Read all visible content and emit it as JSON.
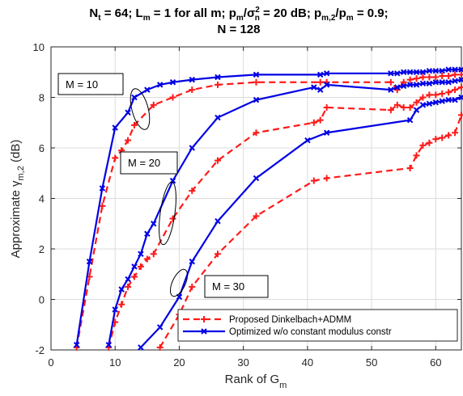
{
  "chart_data": {
    "type": "line",
    "title_line1_parts": [
      "N",
      "t",
      " = 64; L",
      "m",
      " = 1 for all m; p",
      "m",
      "/σ",
      "2",
      "n",
      " = 20 dB; p",
      "m,2",
      "/p",
      "m",
      " = 0.9;"
    ],
    "title_line2": "N = 128",
    "xlabel_parts": [
      "Rank of G",
      "m"
    ],
    "ylabel_parts": [
      "Approximate ",
      "γ",
      "m,2",
      "  (dB)"
    ],
    "xlim": [
      0,
      64
    ],
    "ylim": [
      -2,
      10
    ],
    "xticks": [
      "0",
      "10",
      "20",
      "30",
      "40",
      "50",
      "60"
    ],
    "yticks": [
      "-2",
      "0",
      "2",
      "4",
      "6",
      "8",
      "10"
    ],
    "grid": true,
    "legend_position": "bottom-right",
    "colors": {
      "proposed": "#ff1a1a",
      "optimized": "#0000e6"
    },
    "annotations": [
      "M = 10",
      "M = 20",
      "M = 30"
    ],
    "series": [
      {
        "name": "Proposed Dinkelbach+ADMM",
        "group": "M = 10",
        "style": "proposed",
        "x": [
          4,
          6,
          8,
          10,
          11,
          12,
          13,
          16,
          19,
          22,
          26,
          32,
          42,
          43,
          53,
          54,
          55,
          56,
          57,
          58,
          59,
          60,
          61,
          62,
          63,
          64
        ],
        "y": [
          -1.9,
          0.9,
          3.7,
          5.6,
          5.9,
          6.3,
          6.9,
          7.7,
          8.0,
          8.3,
          8.5,
          8.6,
          8.6,
          8.6,
          8.6,
          8.3,
          8.6,
          8.7,
          8.75,
          8.8,
          8.8,
          8.8,
          8.85,
          8.85,
          8.9,
          8.9
        ]
      },
      {
        "name": "Optimized w/o constant modulus constr",
        "group": "M = 10",
        "style": "optimized",
        "x": [
          4,
          6,
          8,
          10,
          12,
          13,
          15,
          17,
          19,
          22,
          26,
          32,
          42,
          43,
          53,
          54,
          55,
          56,
          57,
          58,
          59,
          60,
          61,
          62,
          63,
          64
        ],
        "y": [
          -1.8,
          1.5,
          4.4,
          6.8,
          7.4,
          8.0,
          8.3,
          8.5,
          8.6,
          8.7,
          8.8,
          8.9,
          8.9,
          8.95,
          8.95,
          8.95,
          9.0,
          9.0,
          9.0,
          9.0,
          9.05,
          9.05,
          9.05,
          9.1,
          9.1,
          9.1
        ]
      },
      {
        "name": "Proposed Dinkelbach+ADMM",
        "group": "M = 20",
        "style": "proposed",
        "x": [
          9,
          10,
          11,
          12,
          13,
          14,
          15,
          16,
          19,
          22,
          26,
          32,
          41,
          42,
          43,
          53,
          54,
          55,
          56,
          57,
          58,
          59,
          60,
          61,
          62,
          63,
          64
        ],
        "y": [
          -1.9,
          -0.9,
          -0.2,
          0.5,
          0.9,
          1.3,
          1.6,
          1.8,
          3.2,
          4.3,
          5.5,
          6.6,
          7.0,
          7.1,
          7.6,
          7.5,
          7.7,
          7.6,
          7.6,
          7.8,
          8.0,
          8.1,
          8.1,
          8.15,
          8.2,
          8.3,
          8.4
        ]
      },
      {
        "name": "Optimized w/o constant modulus constr",
        "group": "M = 20",
        "style": "optimized",
        "x": [
          9,
          10,
          11,
          12,
          13,
          14,
          15,
          16,
          19,
          22,
          26,
          32,
          41,
          42,
          43,
          53,
          54,
          55,
          56,
          57,
          58,
          59,
          60,
          61,
          62,
          63,
          64
        ],
        "y": [
          -1.8,
          -0.4,
          0.4,
          0.8,
          1.3,
          1.8,
          2.6,
          3.0,
          4.7,
          6.0,
          7.2,
          7.9,
          8.4,
          8.3,
          8.5,
          8.3,
          8.4,
          8.45,
          8.5,
          8.5,
          8.55,
          8.55,
          8.6,
          8.6,
          8.6,
          8.65,
          8.7
        ]
      },
      {
        "name": "Proposed Dinkelbach+ADMM",
        "group": "M = 30",
        "style": "proposed",
        "x": [
          17,
          20,
          22,
          26,
          32,
          41,
          43,
          56,
          57,
          58,
          59,
          60,
          61,
          62,
          63,
          64
        ],
        "y": [
          -1.9,
          -0.6,
          0.5,
          1.8,
          3.3,
          4.7,
          4.8,
          5.2,
          5.7,
          6.1,
          6.2,
          6.35,
          6.4,
          6.5,
          6.6,
          7.3
        ]
      },
      {
        "name": "Optimized w/o constant modulus constr",
        "group": "M = 30",
        "style": "optimized",
        "x": [
          14,
          17,
          20,
          22,
          26,
          32,
          40,
          43,
          56,
          57,
          58,
          59,
          60,
          61,
          62,
          63,
          64
        ],
        "y": [
          -1.9,
          -1.1,
          0.1,
          1.5,
          3.1,
          4.8,
          6.3,
          6.6,
          7.1,
          7.5,
          7.7,
          7.75,
          7.8,
          7.85,
          7.9,
          7.9,
          8.0
        ]
      }
    ],
    "legend": [
      {
        "label": "Proposed Dinkelbach+ADMM",
        "style": "proposed"
      },
      {
        "label": "Optimized w/o constant modulus constr",
        "style": "optimized"
      }
    ]
  }
}
